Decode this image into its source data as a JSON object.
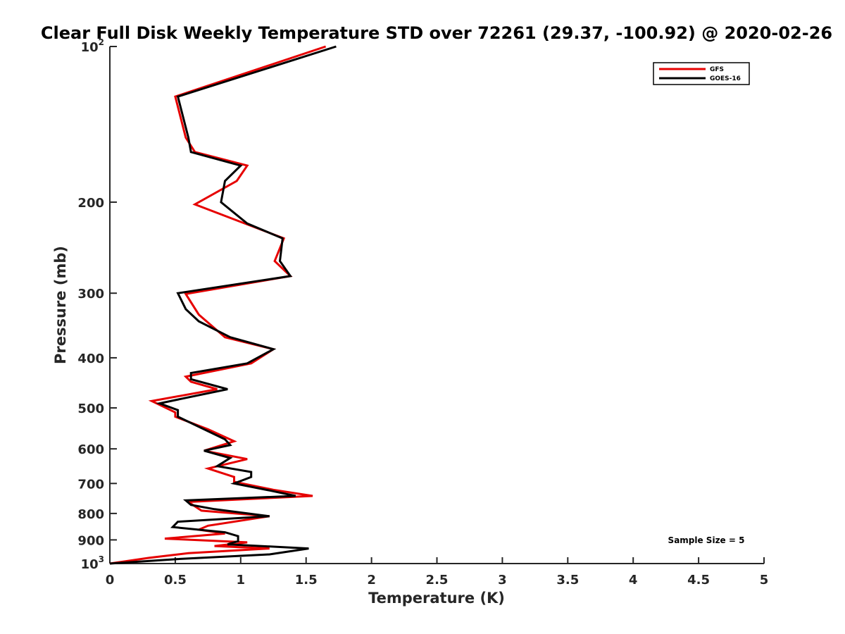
{
  "chart_data": {
    "type": "line",
    "title": "Clear Full Disk Weekly Temperature STD over 72261 (29.37, -100.92) @ 2020-02-26",
    "xlabel": "Temperature (K)",
    "ylabel": "Pressure (mb)",
    "xlim": [
      0,
      5
    ],
    "ylim": [
      100,
      1000
    ],
    "y_scale": "log",
    "y_reversed": true,
    "x_ticks": [
      "0",
      "0.5",
      "1",
      "1.5",
      "2",
      "2.5",
      "3",
      "3.5",
      "4",
      "4.5",
      "5"
    ],
    "y_ticks": [
      {
        "value": 100,
        "base": "10",
        "exp": "2"
      },
      {
        "value": 200,
        "label": "200"
      },
      {
        "value": 300,
        "label": "300"
      },
      {
        "value": 400,
        "label": "400"
      },
      {
        "value": 500,
        "label": "500"
      },
      {
        "value": 600,
        "label": "600"
      },
      {
        "value": 700,
        "label": "700"
      },
      {
        "value": 800,
        "label": "800"
      },
      {
        "value": 900,
        "label": "900"
      },
      {
        "value": 1000,
        "base": "10",
        "exp": "3"
      }
    ],
    "grid": false,
    "legend_position": "top-right",
    "annotation": "Sample Size = 5",
    "series": [
      {
        "name": "GFS",
        "color": "#e60000",
        "points": [
          [
            1.65,
            100
          ],
          [
            0.5,
            125
          ],
          [
            0.58,
            150
          ],
          [
            0.65,
            160
          ],
          [
            1.05,
            170
          ],
          [
            0.97,
            182
          ],
          [
            0.65,
            202
          ],
          [
            1.33,
            235
          ],
          [
            1.26,
            260
          ],
          [
            1.38,
            278
          ],
          [
            0.58,
            301
          ],
          [
            0.68,
            330
          ],
          [
            0.88,
            365
          ],
          [
            1.25,
            385
          ],
          [
            1.08,
            410
          ],
          [
            0.58,
            435
          ],
          [
            0.62,
            445
          ],
          [
            0.82,
            460
          ],
          [
            0.32,
            485
          ],
          [
            0.5,
            510
          ],
          [
            0.5,
            520
          ],
          [
            0.75,
            550
          ],
          [
            0.95,
            580
          ],
          [
            0.72,
            605
          ],
          [
            1.05,
            628
          ],
          [
            0.75,
            655
          ],
          [
            0.95,
            680
          ],
          [
            0.95,
            695
          ],
          [
            1.25,
            720
          ],
          [
            1.55,
            740
          ],
          [
            0.6,
            760
          ],
          [
            0.65,
            775
          ],
          [
            0.7,
            790
          ],
          [
            1.22,
            810
          ],
          [
            0.75,
            845
          ],
          [
            0.68,
            860
          ],
          [
            0.88,
            875
          ],
          [
            0.42,
            895
          ],
          [
            1.05,
            910
          ],
          [
            0.8,
            925
          ],
          [
            1.22,
            935
          ],
          [
            0.6,
            955
          ],
          [
            0.3,
            975
          ],
          [
            0.0,
            1000
          ]
        ]
      },
      {
        "name": "GOES-16",
        "color": "#000000",
        "points": [
          [
            1.73,
            100
          ],
          [
            0.52,
            125
          ],
          [
            0.6,
            150
          ],
          [
            0.62,
            160
          ],
          [
            1.0,
            170
          ],
          [
            0.88,
            182
          ],
          [
            0.85,
            200
          ],
          [
            1.05,
            220
          ],
          [
            1.32,
            235
          ],
          [
            1.3,
            260
          ],
          [
            1.38,
            278
          ],
          [
            0.52,
            300
          ],
          [
            0.58,
            322
          ],
          [
            0.68,
            340
          ],
          [
            0.92,
            365
          ],
          [
            1.25,
            385
          ],
          [
            1.05,
            410
          ],
          [
            0.62,
            428
          ],
          [
            0.62,
            440
          ],
          [
            0.9,
            460
          ],
          [
            0.38,
            490
          ],
          [
            0.52,
            505
          ],
          [
            0.52,
            520
          ],
          [
            0.72,
            550
          ],
          [
            0.88,
            575
          ],
          [
            0.92,
            590
          ],
          [
            0.72,
            605
          ],
          [
            0.92,
            625
          ],
          [
            0.82,
            648
          ],
          [
            1.08,
            665
          ],
          [
            1.08,
            680
          ],
          [
            0.95,
            700
          ],
          [
            1.22,
            722
          ],
          [
            1.42,
            740
          ],
          [
            0.58,
            755
          ],
          [
            0.62,
            770
          ],
          [
            0.8,
            785
          ],
          [
            1.22,
            810
          ],
          [
            0.52,
            830
          ],
          [
            0.48,
            850
          ],
          [
            0.88,
            870
          ],
          [
            0.98,
            885
          ],
          [
            0.98,
            905
          ],
          [
            0.9,
            918
          ],
          [
            1.52,
            935
          ],
          [
            1.22,
            960
          ],
          [
            0.52,
            980
          ],
          [
            0.0,
            1000
          ]
        ]
      }
    ]
  }
}
